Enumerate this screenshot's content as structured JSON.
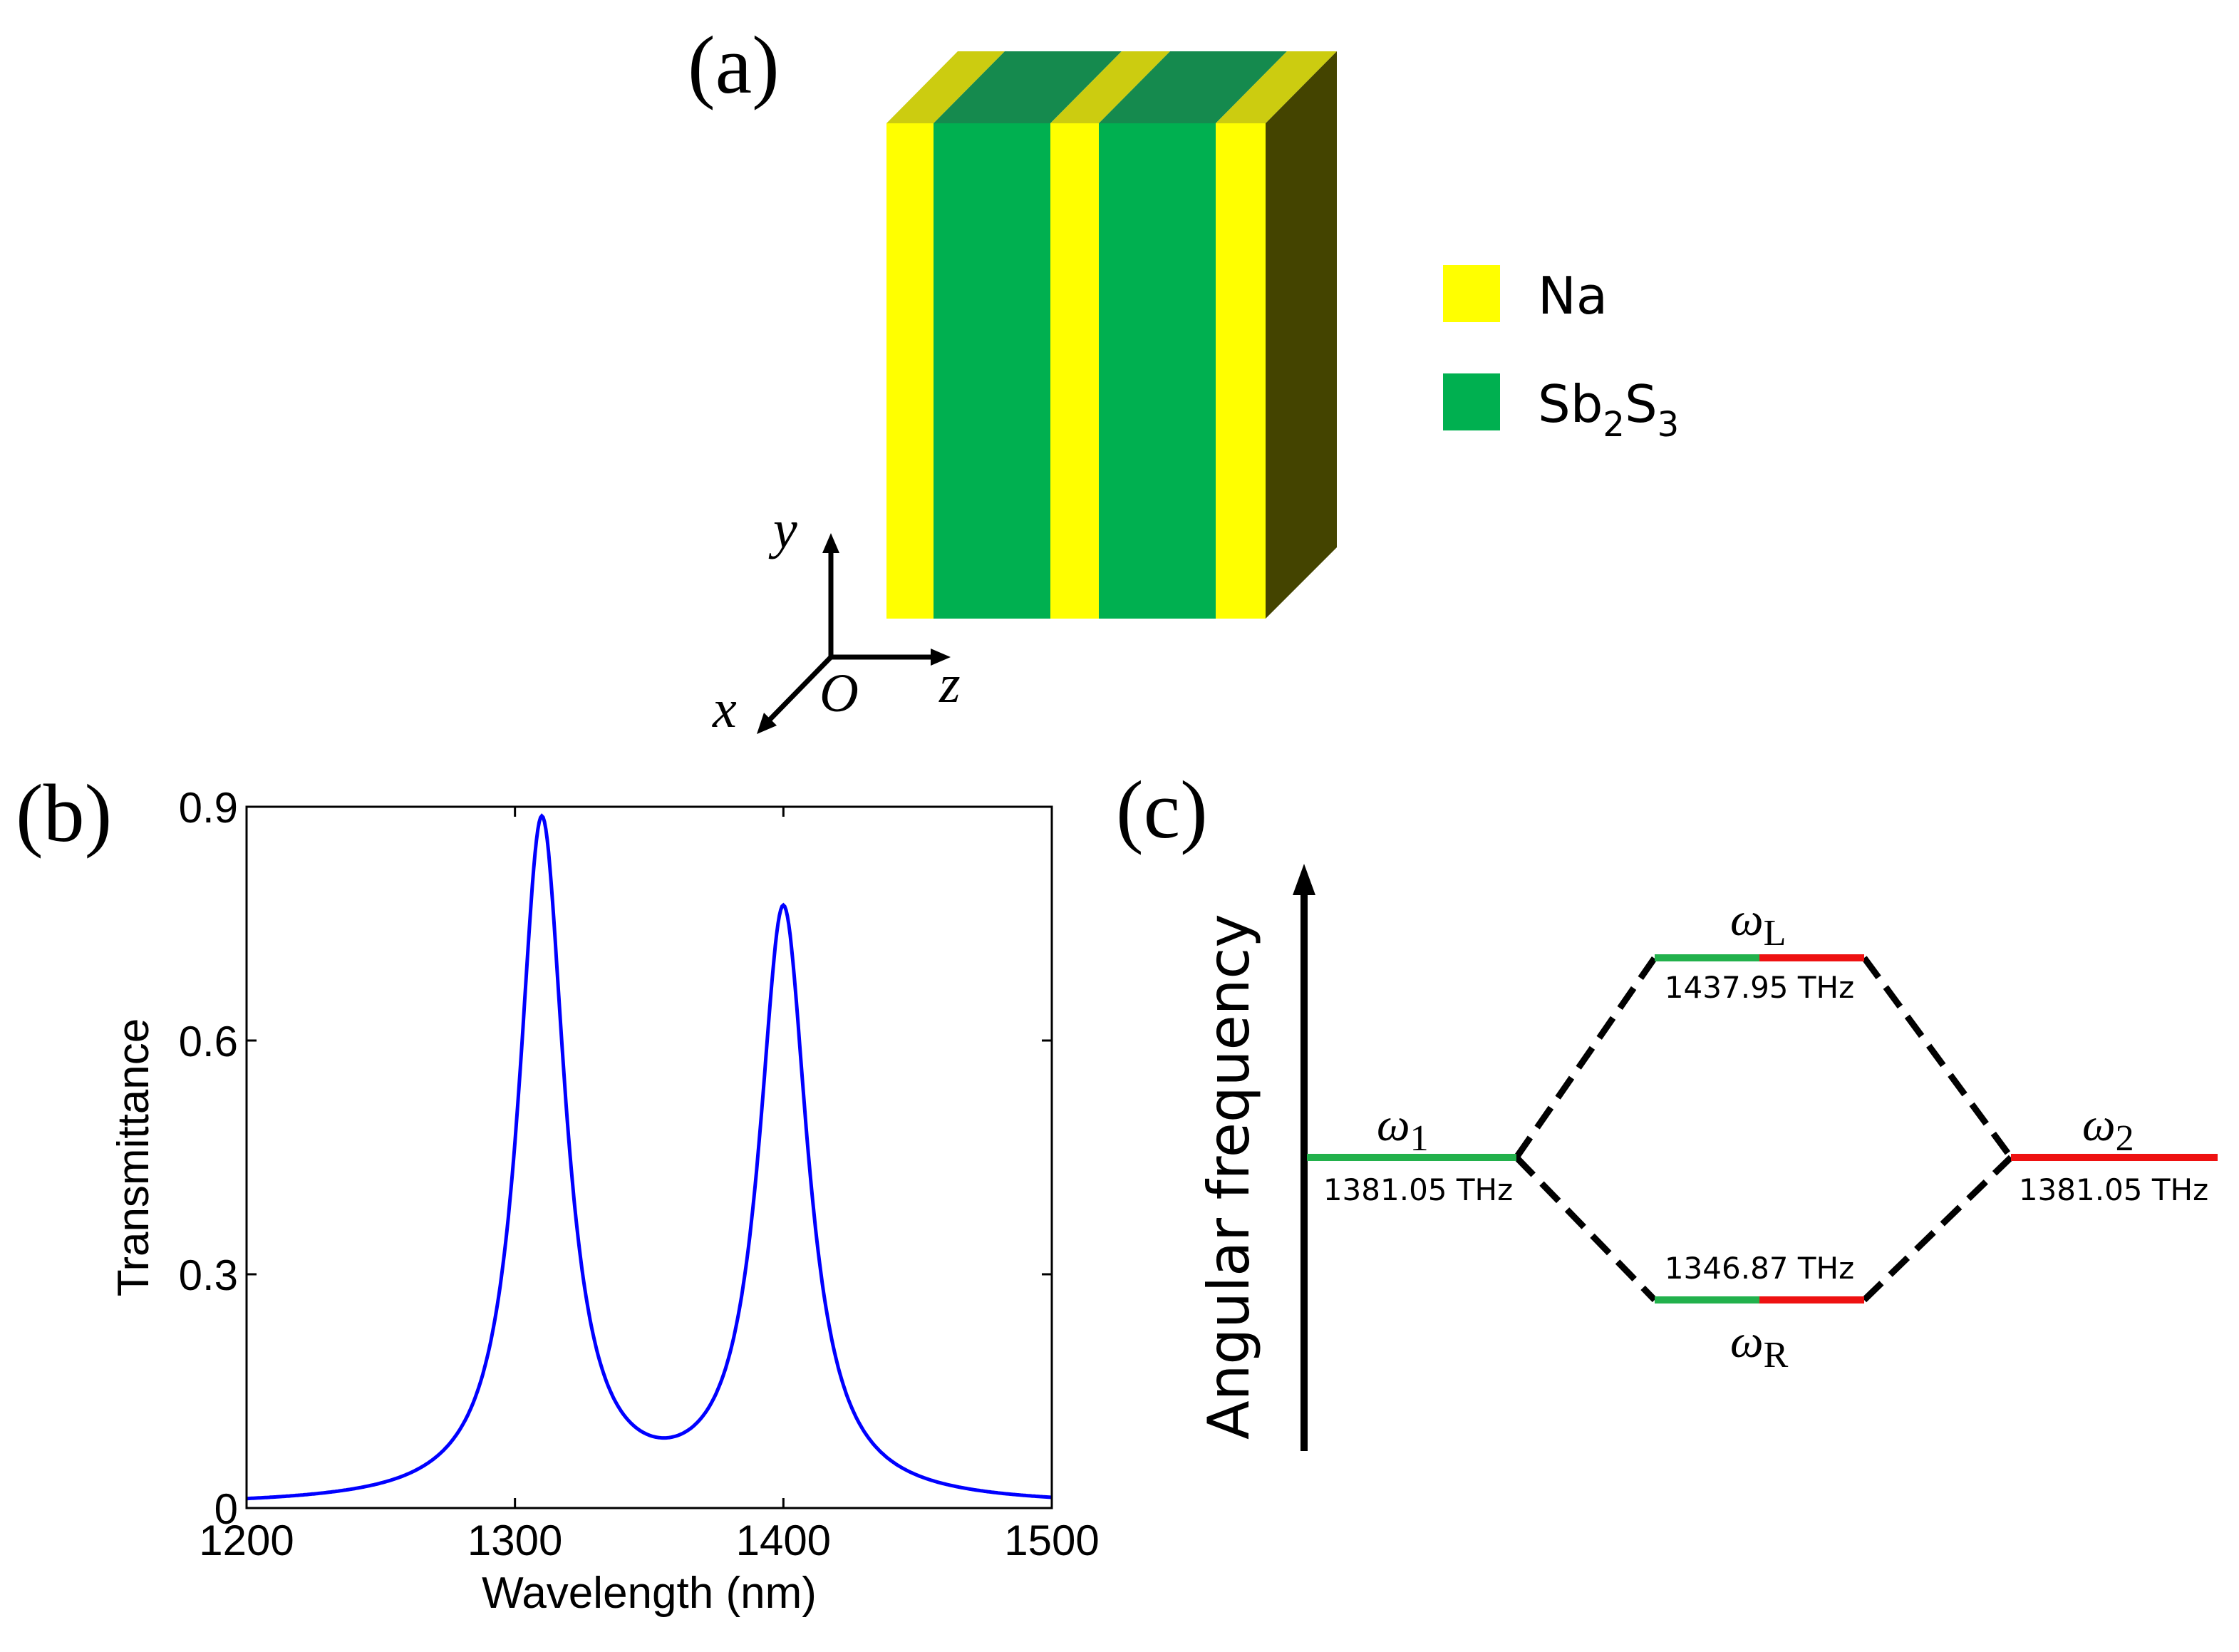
{
  "colors": {
    "na_yellow": "#ffff00",
    "na_top": "#cccc10",
    "sb_green": "#00b050",
    "sb_top": "#158a4e",
    "side_face": "#444400",
    "curve_blue": "#0000ff",
    "level_green": "#22b14c",
    "level_red": "#ee1111",
    "black": "#000000"
  },
  "panel_a": {
    "label": "(a)",
    "legend": [
      {
        "name": "Na",
        "color": "#ffff00"
      },
      {
        "name_main": "Sb",
        "sub1": "2",
        "mid": "S",
        "sub2": "3",
        "color": "#00b050"
      }
    ],
    "layers": [
      "Na",
      "Sb2S3",
      "Na",
      "Sb2S3",
      "Na"
    ],
    "axes": {
      "y": "y",
      "z": "z",
      "x": "x",
      "origin": "O"
    }
  },
  "panel_b": {
    "label": "(b)",
    "chart_data": {
      "type": "line",
      "title": "",
      "xlabel": "Wavelength (nm)",
      "ylabel": "Transmittance",
      "xlim": [
        1200,
        1500
      ],
      "ylim": [
        0,
        0.9
      ],
      "xticks": [
        1200,
        1300,
        1400,
        1500
      ],
      "xtick_labels": [
        "1200",
        "1300",
        "1400",
        "1500"
      ],
      "yticks": [
        0,
        0.3,
        0.6,
        0.9
      ],
      "ytick_labels": [
        "0",
        "0.3",
        "0.6",
        "0.9"
      ],
      "grid": false,
      "series": [
        {
          "name": "Transmittance",
          "peaks": [
            {
              "x": 1310,
              "y": 0.875,
              "hwhm": 10.5
            },
            {
              "x": 1400,
              "y": 0.76,
              "hwhm": 11
            }
          ],
          "baseline": 0.002
        }
      ]
    }
  },
  "panel_c": {
    "label": "(c)",
    "ylabel": "Angular frequency",
    "levels": {
      "w1": {
        "symbol": "ω",
        "sub": "1",
        "value": "1381.05 THz"
      },
      "w2": {
        "symbol": "ω",
        "sub": "2",
        "value": "1381.05 THz"
      },
      "wL": {
        "symbol": "ω",
        "sub": "L",
        "value": "1437.95 THz"
      },
      "wR": {
        "symbol": "ω",
        "sub": "R",
        "value": "1346.87 THz"
      }
    }
  }
}
